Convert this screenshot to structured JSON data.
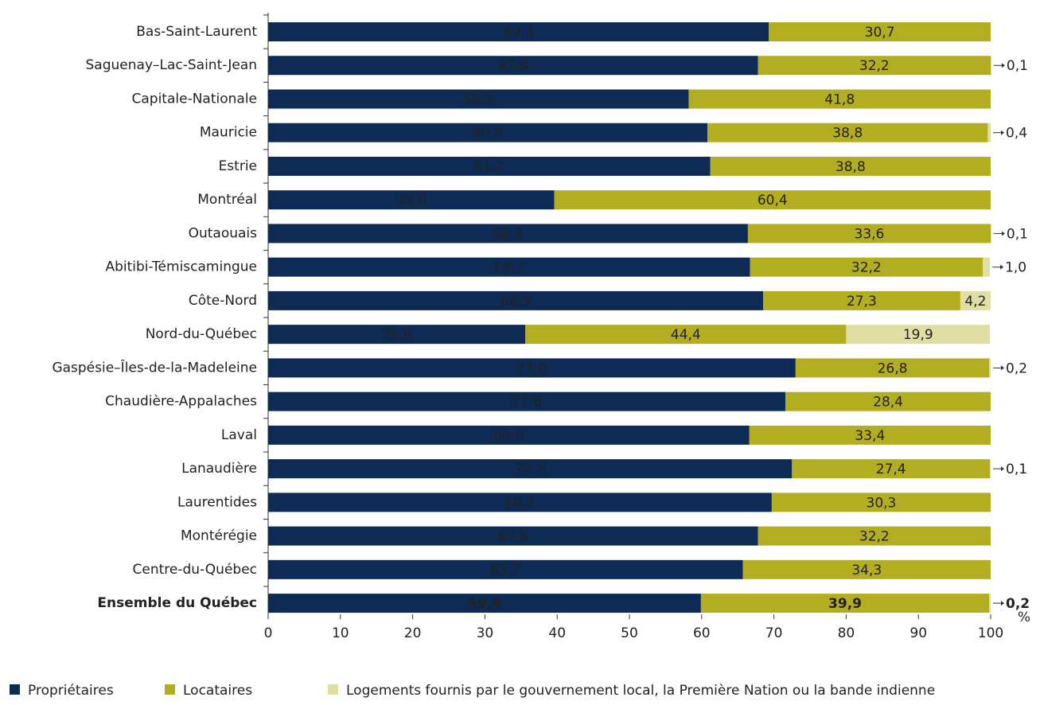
{
  "chart_data": {
    "type": "stacked-barh",
    "categories": [
      "Bas-Saint-Laurent",
      "Saguenay–Lac-Saint-Jean",
      "Capitale-Nationale",
      "Mauricie",
      "Estrie",
      "Montréal",
      "Outaouais",
      "Abitibi-Témiscamingue",
      "Côte-Nord",
      "Nord-du-Québec",
      "Gaspésie–Îles-de-la-Madeleine",
      "Chaudière-Appalaches",
      "Laval",
      "Lanaudière",
      "Laurentides",
      "Montérégie",
      "Centre-du-Québec",
      "Ensemble du Québec"
    ],
    "series": [
      {
        "name": "Propriétaires",
        "color": "#0d2b55",
        "values": [
          69.3,
          67.8,
          58.2,
          60.8,
          61.2,
          39.6,
          66.4,
          66.7,
          68.5,
          35.6,
          73.0,
          71.6,
          66.6,
          72.5,
          69.7,
          67.8,
          65.7,
          59.9
        ],
        "value_labels": [
          "69,3",
          "67,8",
          "58,2",
          "60,8",
          "61,2",
          "39,6",
          "66,4",
          "66,7",
          "68,5",
          "35,6",
          "73,0",
          "71,6",
          "66,6",
          "72,5",
          "69,7",
          "67,8",
          "65,7",
          "59,9"
        ]
      },
      {
        "name": "Locataires",
        "color": "#b3ad22",
        "values": [
          30.7,
          32.2,
          41.8,
          38.8,
          38.8,
          60.4,
          33.6,
          32.2,
          27.3,
          44.4,
          26.8,
          28.4,
          33.4,
          27.4,
          30.3,
          32.2,
          34.3,
          39.9
        ],
        "value_labels": [
          "30,7",
          "32,2",
          "41,8",
          "38,8",
          "38,8",
          "60,4",
          "33,6",
          "32,2",
          "27,3",
          "44,4",
          "26,8",
          "28,4",
          "33,4",
          "27,4",
          "30,3",
          "32,2",
          "34,3",
          "39,9"
        ]
      },
      {
        "name": "Logements fournis par le gouvernement local, la Première Nation ou la bande indienne",
        "color": "#e0dea4",
        "values": [
          null,
          0.1,
          null,
          0.4,
          null,
          null,
          0.1,
          1.0,
          4.2,
          19.9,
          0.2,
          null,
          null,
          0.1,
          null,
          null,
          null,
          0.2
        ],
        "value_labels": [
          null,
          "0,1",
          null,
          "0,4",
          null,
          null,
          "0,1",
          "1,0",
          "4,2",
          "19,9",
          "0,2",
          null,
          null,
          "0,1",
          null,
          null,
          null,
          "0,2"
        ]
      }
    ],
    "xlim": [
      0,
      100
    ],
    "xticks": [
      0,
      10,
      20,
      30,
      40,
      50,
      60,
      70,
      80,
      90,
      100
    ],
    "xlabel": "%"
  }
}
